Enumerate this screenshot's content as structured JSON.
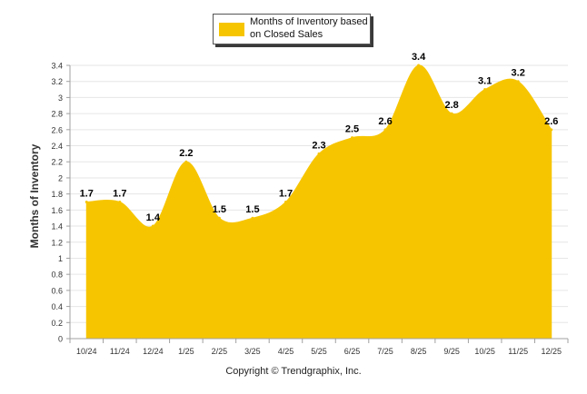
{
  "chart_data": {
    "type": "area",
    "categories": [
      "10/24",
      "11/24",
      "12/24",
      "1/25",
      "2/25",
      "3/25",
      "4/25",
      "5/25",
      "6/25",
      "7/25",
      "8/25",
      "9/25",
      "10/25",
      "11/25",
      "12/25"
    ],
    "series": [
      {
        "name": "Months of Inventory based on Closed Sales",
        "values": [
          1.7,
          1.7,
          1.4,
          2.2,
          1.5,
          1.5,
          1.7,
          2.3,
          2.5,
          2.6,
          3.4,
          2.8,
          3.1,
          3.2,
          2.6
        ]
      }
    ],
    "ylabel": "Months of Inventory",
    "xlabel": "",
    "ylim": [
      0,
      3.4
    ],
    "yticks": [
      "0",
      "0.2",
      "0.4",
      "0.6",
      "0.8",
      "1",
      "1.2",
      "1.4",
      "1.6",
      "1.8",
      "2",
      "2.2",
      "2.4",
      "2.6",
      "2.8",
      "3",
      "3.2",
      "3.4"
    ],
    "grid": true,
    "legend_position": "top-center",
    "data_labels": true
  },
  "colors": {
    "fill": "#F7C500",
    "grid": "#e6e6e6",
    "axis": "#a0a0a0",
    "text": "#333333"
  },
  "footer": {
    "copyright": "Copyright © Trendgraphix, Inc."
  }
}
